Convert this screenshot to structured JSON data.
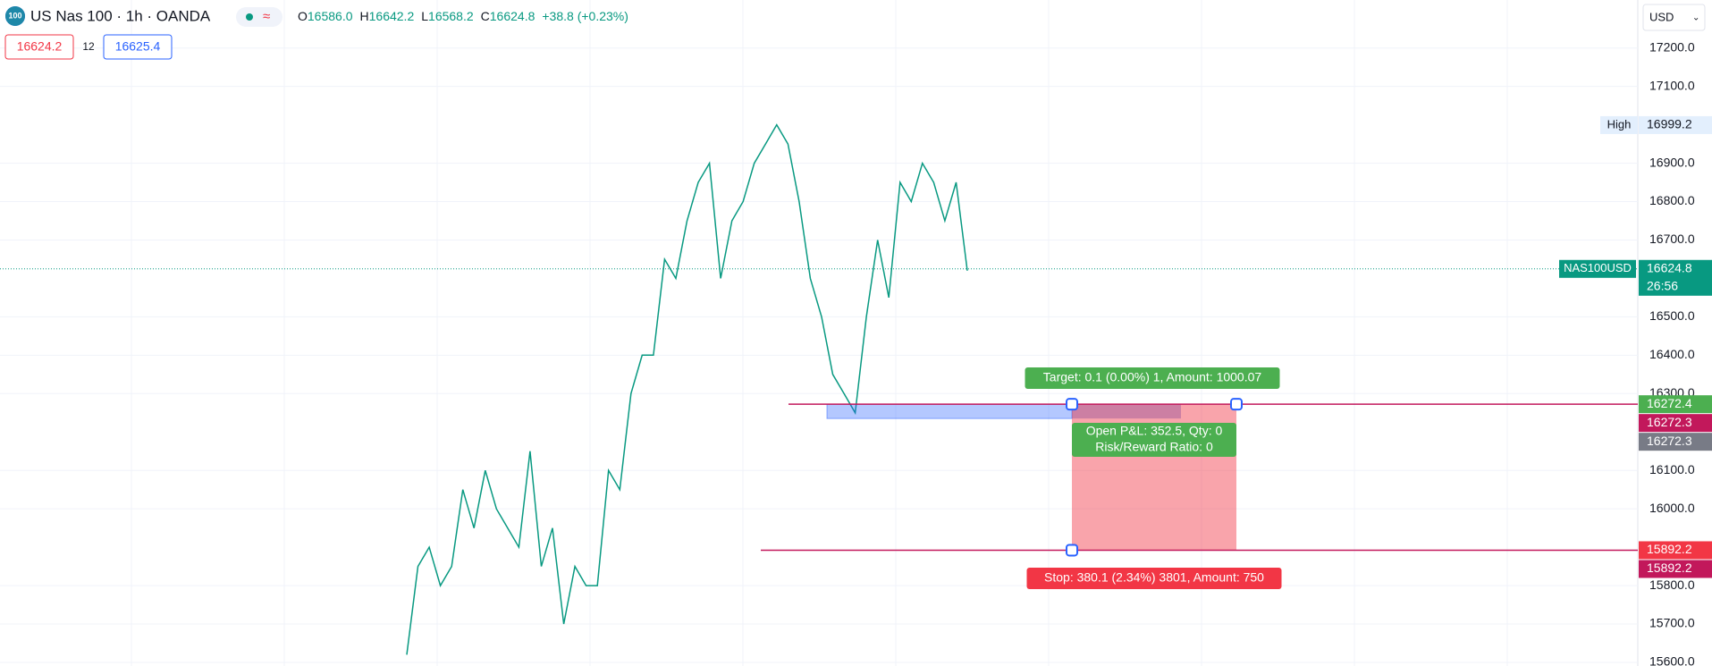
{
  "header": {
    "icon": "100",
    "title": "US Nas 100 · 1h · OANDA",
    "ohlc": [
      {
        "label": "O",
        "value": "16586.0"
      },
      {
        "label": "H",
        "value": "16642.2"
      },
      {
        "label": "L",
        "value": "16568.2"
      },
      {
        "label": "C",
        "value": "16624.8"
      }
    ],
    "change": "+38.8 (+0.23%)",
    "sell": "16624.2",
    "spread": "12",
    "buy": "16625.4",
    "currency": "USD"
  },
  "price_axis": {
    "ylim": [
      15600,
      17200
    ],
    "yticks": [
      {
        "value": 17200,
        "label": "17200.0"
      },
      {
        "value": 17100,
        "label": "17100.0"
      },
      {
        "value": 16900,
        "label": "16900.0"
      },
      {
        "value": 16800,
        "label": "16800.0"
      },
      {
        "value": 16700,
        "label": "16700.0"
      },
      {
        "value": 16500,
        "label": "16500.0"
      },
      {
        "value": 16400,
        "label": "16400.0"
      },
      {
        "value": 16300,
        "label": "16300.0"
      },
      {
        "value": 16100,
        "label": "16100.0"
      },
      {
        "value": 16000,
        "label": "16000.0"
      },
      {
        "value": 15800,
        "label": "15800.0"
      },
      {
        "value": 15700,
        "label": "15700.0"
      },
      {
        "value": 15600,
        "label": "15600.0"
      }
    ]
  },
  "price_path": {
    "color": "#089981",
    "values": [
      15620,
      15850,
      15900,
      15800,
      15850,
      16050,
      15950,
      16100,
      16000,
      15950,
      15900,
      16150,
      15850,
      15950,
      15700,
      15850,
      15800,
      15800,
      16100,
      16050,
      16300,
      16400,
      16400,
      16650,
      16600,
      16750,
      16850,
      16900,
      16600,
      16750,
      16800,
      16900,
      16950,
      17000,
      16950,
      16800,
      16600,
      16500,
      16350,
      16300,
      16250,
      16500,
      16700,
      16550,
      16850,
      16800,
      16900,
      16850,
      16750,
      16850,
      16620
    ]
  },
  "last_price": {
    "symbol": "NAS100USD",
    "value": 16624.8,
    "countdown": "26:56"
  },
  "high": {
    "label": "High",
    "value": 16999.2
  },
  "position": {
    "entry": 16272.4,
    "entry_sell": 16272.3,
    "entry_mark": 16272.3,
    "stop": 15892.2,
    "stop_mark": 15892.2,
    "target_label": "Target: 0.1 (0.00%) 1, Amount: 1000.07",
    "pnl_label": "Open P&L: 352.5, Qty: 0",
    "rr_label": "Risk/Reward Ratio: 0",
    "stop_label": "Stop: 380.1 (2.34%) 3801, Amount: 750"
  }
}
